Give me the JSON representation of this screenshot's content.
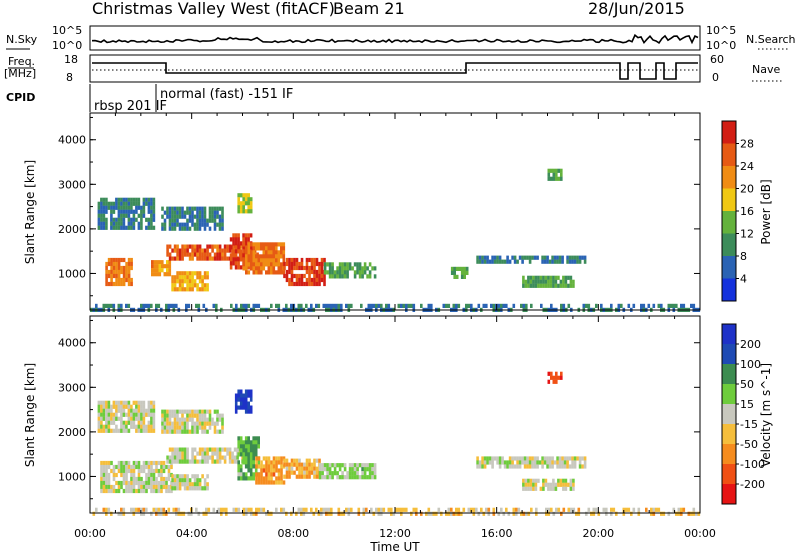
{
  "header": {
    "station": "Christmas Valley West (fitACF)",
    "beam": "Beam 21",
    "date": "28/Jun/2015"
  },
  "strip_labels": {
    "nsky": "N.Sky",
    "nsky_ticks": [
      "10^5",
      "10^0"
    ],
    "nsearch": "N.Search",
    "nsearch_ticks": [
      "10^5",
      "10^0"
    ],
    "freq": "Freq.",
    "freq_unit": "[MHz]",
    "freq_ticks": [
      "18",
      "8"
    ],
    "nave": "Nave",
    "nave_ticks": [
      "60",
      "0"
    ],
    "cpid": "CPID",
    "cpid_modes": [
      "rbsp 201 IF",
      "normal (fast) -151 IF"
    ]
  },
  "colors": {
    "power": [
      "#1432dc",
      "#2a63b4",
      "#3c8c5a",
      "#64b23c",
      "#f0c814",
      "#f08c14",
      "#e65a14",
      "#d21e14"
    ],
    "velocity": [
      "#e61414",
      "#f05014",
      "#f58c1e",
      "#f5be3c",
      "#c8c8be",
      "#6ecc3c",
      "#3c8c50",
      "#1e4ab4",
      "#1e32c8"
    ],
    "frame": "#000000"
  },
  "chart_data": [
    {
      "type": "heatmap",
      "name": "power",
      "xlabel": "",
      "ylabel": "Slant Range [km]",
      "xlim": [
        "00:00",
        "24:00"
      ],
      "ylim": [
        180,
        4600
      ],
      "yticks": [
        "1000",
        "2000",
        "3000",
        "4000"
      ],
      "colorbar_label": "Power [dB]",
      "colorbar_ticks": [
        "4",
        "8",
        "12",
        "16",
        "20",
        "24",
        "28"
      ],
      "colorbar_range": [
        0,
        32
      ],
      "regions": [
        {
          "t0": 0.6,
          "t1": 1.6,
          "r0": 800,
          "r1": 1350,
          "value": 24
        },
        {
          "t0": 0.3,
          "t1": 2.5,
          "r0": 2050,
          "r1": 2700,
          "value": 8
        },
        {
          "t0": 2.4,
          "t1": 3.1,
          "r0": 950,
          "r1": 1300,
          "value": 22
        },
        {
          "t0": 3.2,
          "t1": 4.6,
          "r0": 650,
          "r1": 1050,
          "value": 20
        },
        {
          "t0": 2.8,
          "t1": 5.2,
          "r0": 2050,
          "r1": 2500,
          "value": 8
        },
        {
          "t0": 3.0,
          "t1": 6.6,
          "r0": 1350,
          "r1": 1650,
          "value": 26
        },
        {
          "t0": 5.5,
          "t1": 6.3,
          "r0": 1100,
          "r1": 1900,
          "value": 28
        },
        {
          "t0": 5.8,
          "t1": 6.3,
          "r0": 2400,
          "r1": 2800,
          "value": 16
        },
        {
          "t0": 6.0,
          "t1": 7.6,
          "r0": 1000,
          "r1": 1700,
          "value": 24
        },
        {
          "t0": 7.6,
          "t1": 9.2,
          "r0": 800,
          "r1": 1350,
          "value": 28
        },
        {
          "t0": 9.2,
          "t1": 11.2,
          "r0": 950,
          "r1": 1250,
          "value": 12
        },
        {
          "t0": 14.2,
          "t1": 14.8,
          "r0": 950,
          "r1": 1150,
          "value": 12
        },
        {
          "t0": 15.2,
          "t1": 19.5,
          "r0": 1250,
          "r1": 1400,
          "value": 8
        },
        {
          "t0": 17.0,
          "t1": 19.0,
          "r0": 700,
          "r1": 950,
          "value": 12
        },
        {
          "t0": 18.0,
          "t1": 18.5,
          "r0": 3150,
          "r1": 3350,
          "value": 12
        },
        {
          "t0": 0.0,
          "t1": 24.0,
          "r0": 180,
          "r1": 320,
          "value": 8
        }
      ]
    },
    {
      "type": "heatmap",
      "name": "velocity",
      "xlabel": "Time UT",
      "ylabel": "Slant Range [km]",
      "xlim": [
        "00:00",
        "24:00"
      ],
      "xticks": [
        "00:00",
        "04:00",
        "08:00",
        "12:00",
        "16:00",
        "20:00",
        "00:00"
      ],
      "ylim": [
        180,
        4600
      ],
      "yticks": [
        "1000",
        "2000",
        "3000",
        "4000"
      ],
      "colorbar_label": "Velocity [m s^-1]",
      "colorbar_ticks": [
        "-200",
        "-100",
        "-50",
        "-15",
        "15",
        "50",
        "100",
        "200"
      ],
      "colorbar_range": [
        -250,
        250
      ],
      "regions": [
        {
          "t0": 0.4,
          "t1": 3.2,
          "r0": 700,
          "r1": 1350,
          "value": 0
        },
        {
          "t0": 0.3,
          "t1": 2.5,
          "r0": 2050,
          "r1": 2700,
          "value": 0
        },
        {
          "t0": 3.0,
          "t1": 6.2,
          "r0": 1300,
          "r1": 1650,
          "value": 0
        },
        {
          "t0": 3.2,
          "t1": 4.6,
          "r0": 700,
          "r1": 1050,
          "value": 0
        },
        {
          "t0": 2.8,
          "t1": 5.2,
          "r0": 2050,
          "r1": 2500,
          "value": 0
        },
        {
          "t0": 5.7,
          "t1": 6.3,
          "r0": 2500,
          "r1": 2950,
          "value": 200
        },
        {
          "t0": 5.8,
          "t1": 6.6,
          "r0": 1000,
          "r1": 1900,
          "value": 80
        },
        {
          "t0": 6.5,
          "t1": 7.6,
          "r0": 850,
          "r1": 1450,
          "value": -90
        },
        {
          "t0": 7.6,
          "t1": 9.0,
          "r0": 1000,
          "r1": 1400,
          "value": -70
        },
        {
          "t0": 9.0,
          "t1": 11.2,
          "r0": 950,
          "r1": 1300,
          "value": 30
        },
        {
          "t0": 15.2,
          "t1": 19.5,
          "r0": 1200,
          "r1": 1450,
          "value": 0
        },
        {
          "t0": 17.0,
          "t1": 19.0,
          "r0": 750,
          "r1": 950,
          "value": 0
        },
        {
          "t0": 18.0,
          "t1": 18.5,
          "r0": 3150,
          "r1": 3350,
          "value": -200
        },
        {
          "t0": 0.0,
          "t1": 24.0,
          "r0": 180,
          "r1": 300,
          "value": -40
        }
      ]
    }
  ]
}
